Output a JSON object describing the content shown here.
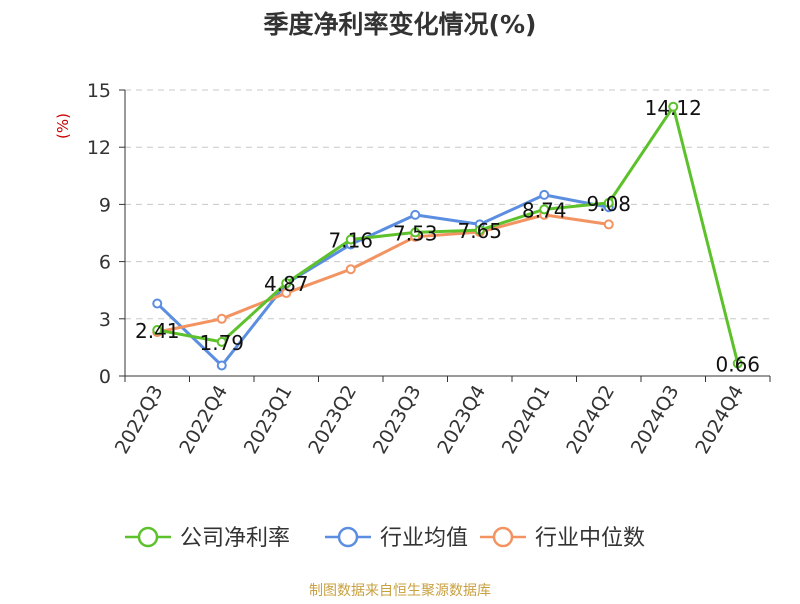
{
  "chart_data": {
    "type": "line",
    "title": "季度净利率变化情况(%)",
    "ylabel": "(%)",
    "xlabel": "",
    "categories": [
      "2022Q3",
      "2022Q4",
      "2023Q1",
      "2023Q2",
      "2023Q3",
      "2023Q4",
      "2024Q1",
      "2024Q2",
      "2024Q3",
      "2024Q4"
    ],
    "ylim": [
      0,
      15
    ],
    "yticks": [
      0,
      3,
      6,
      9,
      12,
      15
    ],
    "grid": true,
    "legend_position": "bottom",
    "series": [
      {
        "name": "公司净利率",
        "color": "#5dc12b",
        "values": [
          2.41,
          1.79,
          4.87,
          7.16,
          7.53,
          7.65,
          8.74,
          9.08,
          14.12,
          0.66
        ],
        "labels": true
      },
      {
        "name": "行业均值",
        "color": "#5b8ee0",
        "values": [
          3.8,
          0.55,
          4.85,
          6.9,
          8.45,
          7.95,
          9.5,
          8.85,
          null,
          null
        ],
        "labels": false
      },
      {
        "name": "行业中位数",
        "color": "#f29361",
        "values": [
          2.3,
          3.0,
          4.35,
          5.6,
          7.3,
          7.55,
          8.45,
          7.95,
          null,
          null
        ],
        "labels": false
      }
    ]
  },
  "source": "制图数据来自恒生聚源数据库"
}
